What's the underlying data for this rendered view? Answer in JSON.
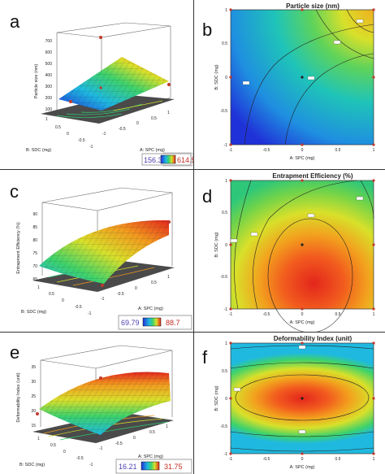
{
  "panels": [
    {
      "letter": "a",
      "kind": "surface3d",
      "zlabel": "Particle size (nm)",
      "zticks": [
        "100",
        "200",
        "300",
        "400",
        "500",
        "600",
        "700"
      ],
      "xlabel": "A: SPC (mg)",
      "ylabel": "B: SDC (mg)",
      "xticks": [
        "-1",
        "-0.5",
        "0",
        "0.5",
        "1"
      ],
      "yticks": [
        "1",
        "0.5",
        "0",
        "-0.5",
        "-1"
      ],
      "colorbar": {
        "min": "156.3",
        "max": "614.5"
      },
      "colors": {
        "low": "#1f32d8",
        "high": "#e31a1c"
      }
    },
    {
      "letter": "c",
      "kind": "surface3d",
      "zlabel": "Entrapment Efficiency (%)",
      "zticks": [
        "65",
        "70",
        "75",
        "80",
        "85",
        "90"
      ],
      "xlabel": "A: SPC (mg)",
      "ylabel": "B: SDC (mg)",
      "xticks": [
        "-1",
        "-0.5",
        "0",
        "0.5",
        "1"
      ],
      "yticks": [
        "1",
        "0.5",
        "0",
        "-0.5",
        "-1"
      ],
      "colorbar": {
        "min": "69.79",
        "max": "88.7"
      }
    },
    {
      "letter": "e",
      "kind": "surface3d",
      "zlabel": "Deformability Index (unit)",
      "zticks": [
        "15",
        "20",
        "25",
        "30",
        "35"
      ],
      "xlabel": "A: SPC (mg)",
      "ylabel": "B: SDC (mg)",
      "xticks": [
        "-1",
        "-0.5",
        "0",
        "0.5",
        "1"
      ],
      "yticks": [
        "1",
        "0.5",
        "0",
        "-0.5",
        "-1"
      ],
      "colorbar": {
        "min": "16.21",
        "max": "31.75"
      }
    },
    {
      "letter": "b",
      "kind": "contour",
      "title": "Particle size (nm)",
      "xlabel": "A: SPC (mg)",
      "ylabel": "B: SDC (mg)",
      "xticks": [
        "-1",
        "-0.5",
        "0",
        "0.5",
        "1"
      ],
      "yticks": [
        "-1",
        "-0.5",
        "0",
        "0.5",
        "1"
      ]
    },
    {
      "letter": "d",
      "kind": "contour",
      "title": "Entrapment Efficiency (%)",
      "xlabel": "A: SPC (mg)",
      "ylabel": "B: SDC (mg)",
      "xticks": [
        "-1",
        "-0.5",
        "0",
        "0.5",
        "1"
      ],
      "yticks": [
        "-1",
        "-0.5",
        "0",
        "0.5",
        "1"
      ]
    },
    {
      "letter": "f",
      "kind": "contour",
      "title": "Deformability Index (unit)",
      "xlabel": "A: SPC (mg)",
      "ylabel": "B: SDC (mg)",
      "xticks": [
        "-1",
        "-0.5",
        "0",
        "0.5",
        "1"
      ],
      "yticks": [
        "-1",
        "-0.5",
        "0",
        "0.5",
        "1"
      ]
    }
  ],
  "chart_data": [
    {
      "type": "heatmap",
      "panel": "a",
      "subtype": "3d-surface",
      "zlabel": "Particle size (nm)",
      "xlabel": "A: SPC (mg)",
      "ylabel": "B: SDC (mg)",
      "x_range": [
        -1,
        1
      ],
      "y_range": [
        -1,
        1
      ],
      "z_range": [
        156.3,
        614.5
      ],
      "colorbar_range": [
        156.3,
        614.5
      ]
    },
    {
      "type": "heatmap",
      "panel": "b",
      "subtype": "contour",
      "title": "Particle size (nm)",
      "xlabel": "A: SPC (mg)",
      "ylabel": "B: SDC (mg)",
      "x_range": [
        -1,
        1
      ],
      "y_range": [
        -1,
        1
      ]
    },
    {
      "type": "heatmap",
      "panel": "c",
      "subtype": "3d-surface",
      "zlabel": "Entrapment Efficiency (%)",
      "xlabel": "A: SPC (mg)",
      "ylabel": "B: SDC (mg)",
      "x_range": [
        -1,
        1
      ],
      "y_range": [
        -1,
        1
      ],
      "z_range": [
        69.79,
        88.7
      ],
      "colorbar_range": [
        69.79,
        88.7
      ]
    },
    {
      "type": "heatmap",
      "panel": "d",
      "subtype": "contour",
      "title": "Entrapment Efficiency (%)",
      "xlabel": "A: SPC (mg)",
      "ylabel": "B: SDC (mg)",
      "x_range": [
        -1,
        1
      ],
      "y_range": [
        -1,
        1
      ]
    },
    {
      "type": "heatmap",
      "panel": "e",
      "subtype": "3d-surface",
      "zlabel": "Deformability Index (unit)",
      "xlabel": "A: SPC (mg)",
      "ylabel": "B: SDC (mg)",
      "x_range": [
        -1,
        1
      ],
      "y_range": [
        -1,
        1
      ],
      "z_range": [
        16.21,
        31.75
      ],
      "colorbar_range": [
        16.21,
        31.75
      ]
    },
    {
      "type": "heatmap",
      "panel": "f",
      "subtype": "contour",
      "title": "Deformability Index (unit)",
      "xlabel": "A: SPC (mg)",
      "ylabel": "B: SDC (mg)",
      "x_range": [
        -1,
        1
      ],
      "y_range": [
        -1,
        1
      ]
    }
  ]
}
